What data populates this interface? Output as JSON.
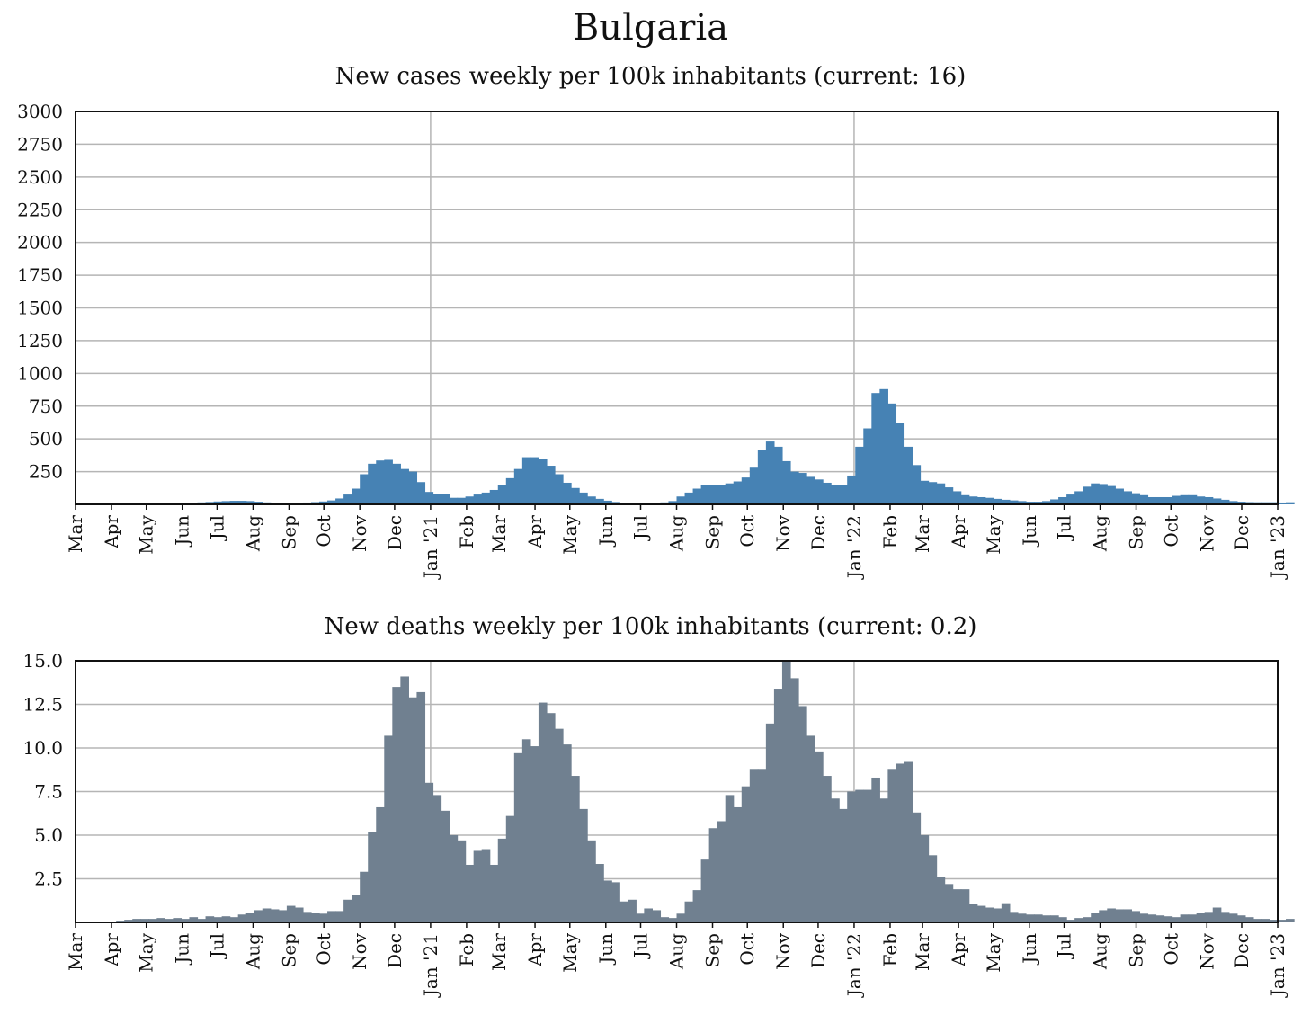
{
  "title": "Bulgaria",
  "chart_data": [
    {
      "type": "bar",
      "title": "New cases weekly per 100k inhabitants (current: 16)",
      "color": "#4682b4",
      "ylim": [
        0,
        3000
      ],
      "yticks": [
        250,
        500,
        750,
        1000,
        1250,
        1500,
        1750,
        2000,
        2250,
        2500,
        2750,
        3000
      ],
      "ytick_labels": [
        "250",
        "500",
        "750",
        "1000",
        "1250",
        "1500",
        "1750",
        "2000",
        "2250",
        "2500",
        "2750",
        "3000"
      ],
      "x_range": [
        "2020-03-01",
        "2023-01-01"
      ],
      "x_tick_labels": [
        "Mar",
        "Apr",
        "May",
        "Jun",
        "Jul",
        "Aug",
        "Sep",
        "Oct",
        "Nov",
        "Dec",
        "Jan '21",
        "Feb",
        "Mar",
        "Apr",
        "May",
        "Jun",
        "Jul",
        "Aug",
        "Sep",
        "Oct",
        "Nov",
        "Dec",
        "Jan '22",
        "Feb",
        "Mar",
        "Apr",
        "May",
        "Jun",
        "Jul",
        "Aug",
        "Sep",
        "Oct",
        "Nov",
        "Dec",
        "Jan '23"
      ],
      "x_ticks": [
        "2020-03-01",
        "2020-04-01",
        "2020-05-01",
        "2020-06-01",
        "2020-07-01",
        "2020-08-01",
        "2020-09-01",
        "2020-10-01",
        "2020-11-01",
        "2020-12-01",
        "2021-01-01",
        "2021-02-01",
        "2021-03-01",
        "2021-04-01",
        "2021-05-01",
        "2021-06-01",
        "2021-07-01",
        "2021-08-01",
        "2021-09-01",
        "2021-10-01",
        "2021-11-01",
        "2021-12-01",
        "2022-01-01",
        "2022-02-01",
        "2022-03-01",
        "2022-04-01",
        "2022-05-01",
        "2022-06-01",
        "2022-07-01",
        "2022-08-01",
        "2022-09-01",
        "2022-10-01",
        "2022-11-01",
        "2022-12-01",
        "2023-01-01"
      ],
      "vlines": [
        "2021-01-01",
        "2022-01-01"
      ],
      "grid": true,
      "first_week": "2020-03-01",
      "values": [
        0,
        0,
        0,
        1,
        1,
        2,
        2,
        2,
        3,
        4,
        5,
        6,
        8,
        10,
        12,
        15,
        18,
        22,
        25,
        27,
        27,
        25,
        20,
        15,
        12,
        12,
        12,
        12,
        14,
        17,
        22,
        30,
        45,
        75,
        120,
        230,
        310,
        335,
        340,
        310,
        270,
        250,
        170,
        95,
        80,
        80,
        50,
        50,
        60,
        75,
        90,
        110,
        150,
        200,
        270,
        360,
        360,
        345,
        295,
        230,
        165,
        125,
        90,
        60,
        42,
        28,
        18,
        12,
        8,
        6,
        5,
        8,
        15,
        25,
        60,
        90,
        120,
        150,
        150,
        145,
        160,
        175,
        205,
        280,
        415,
        480,
        440,
        330,
        250,
        240,
        210,
        190,
        165,
        150,
        145,
        220,
        440,
        580,
        850,
        880,
        770,
        620,
        440,
        300,
        180,
        170,
        160,
        130,
        100,
        70,
        60,
        55,
        50,
        42,
        35,
        30,
        25,
        20,
        20,
        25,
        38,
        55,
        75,
        100,
        135,
        160,
        155,
        140,
        120,
        100,
        85,
        70,
        55,
        55,
        55,
        65,
        70,
        70,
        60,
        55,
        45,
        35,
        25,
        20,
        17,
        16,
        16,
        16,
        14,
        16
      ]
    },
    {
      "type": "bar",
      "title": "New deaths weekly per 100k inhabitants (current: 0.2)",
      "color": "#708090",
      "ylim": [
        0,
        15
      ],
      "yticks": [
        2.5,
        5.0,
        7.5,
        10.0,
        12.5,
        15.0
      ],
      "ytick_labels": [
        "2.5",
        "5.0",
        "7.5",
        "10.0",
        "12.5",
        "15.0"
      ],
      "x_range": [
        "2020-03-01",
        "2023-01-01"
      ],
      "x_tick_labels": [
        "Mar",
        "Apr",
        "May",
        "Jun",
        "Jul",
        "Aug",
        "Sep",
        "Oct",
        "Nov",
        "Dec",
        "Jan '21",
        "Feb",
        "Mar",
        "Apr",
        "May",
        "Jun",
        "Jul",
        "Aug",
        "Sep",
        "Oct",
        "Nov",
        "Dec",
        "Jan '22",
        "Feb",
        "Mar",
        "Apr",
        "May",
        "Jun",
        "Jul",
        "Aug",
        "Sep",
        "Oct",
        "Nov",
        "Dec",
        "Jan '23"
      ],
      "x_ticks": [
        "2020-03-01",
        "2020-04-01",
        "2020-05-01",
        "2020-06-01",
        "2020-07-01",
        "2020-08-01",
        "2020-09-01",
        "2020-10-01",
        "2020-11-01",
        "2020-12-01",
        "2021-01-01",
        "2021-02-01",
        "2021-03-01",
        "2021-04-01",
        "2021-05-01",
        "2021-06-01",
        "2021-07-01",
        "2021-08-01",
        "2021-09-01",
        "2021-10-01",
        "2021-11-01",
        "2021-12-01",
        "2022-01-01",
        "2022-02-01",
        "2022-03-01",
        "2022-04-01",
        "2022-05-01",
        "2022-06-01",
        "2022-07-01",
        "2022-08-01",
        "2022-09-01",
        "2022-10-01",
        "2022-11-01",
        "2022-12-01",
        "2023-01-01"
      ],
      "vlines": [
        "2021-01-01",
        "2022-01-01"
      ],
      "grid": true,
      "first_week": "2020-03-01",
      "values": [
        0,
        0,
        0,
        0,
        0.05,
        0.1,
        0.15,
        0.2,
        0.2,
        0.2,
        0.25,
        0.2,
        0.25,
        0.2,
        0.3,
        0.2,
        0.35,
        0.3,
        0.35,
        0.3,
        0.45,
        0.55,
        0.7,
        0.8,
        0.75,
        0.7,
        0.95,
        0.85,
        0.6,
        0.55,
        0.5,
        0.65,
        0.65,
        1.3,
        1.55,
        2.9,
        5.2,
        6.6,
        10.7,
        13.5,
        14.1,
        12.9,
        13.2,
        8.0,
        7.3,
        6.4,
        5.0,
        4.7,
        3.3,
        4.1,
        4.2,
        3.3,
        4.8,
        6.1,
        9.7,
        10.5,
        10.1,
        12.6,
        12.0,
        11.1,
        10.2,
        8.4,
        6.5,
        4.7,
        3.35,
        2.4,
        2.3,
        1.2,
        1.3,
        0.5,
        0.8,
        0.7,
        0.3,
        0.25,
        0.5,
        1.2,
        1.85,
        3.6,
        5.4,
        5.8,
        7.3,
        6.6,
        7.8,
        8.8,
        8.8,
        11.4,
        13.4,
        15.1,
        14.0,
        12.4,
        10.7,
        9.8,
        8.4,
        7.1,
        6.5,
        7.5,
        7.6,
        7.6,
        8.3,
        7.1,
        8.8,
        9.1,
        9.2,
        6.3,
        5.0,
        3.85,
        2.6,
        2.2,
        1.9,
        1.9,
        1.05,
        0.95,
        0.85,
        0.8,
        1.1,
        0.6,
        0.5,
        0.45,
        0.45,
        0.4,
        0.4,
        0.3,
        0.15,
        0.25,
        0.3,
        0.55,
        0.7,
        0.8,
        0.75,
        0.75,
        0.65,
        0.5,
        0.45,
        0.4,
        0.35,
        0.3,
        0.45,
        0.45,
        0.55,
        0.6,
        0.85,
        0.6,
        0.5,
        0.4,
        0.3,
        0.2,
        0.2,
        0.15,
        0.15,
        0.2
      ]
    }
  ]
}
